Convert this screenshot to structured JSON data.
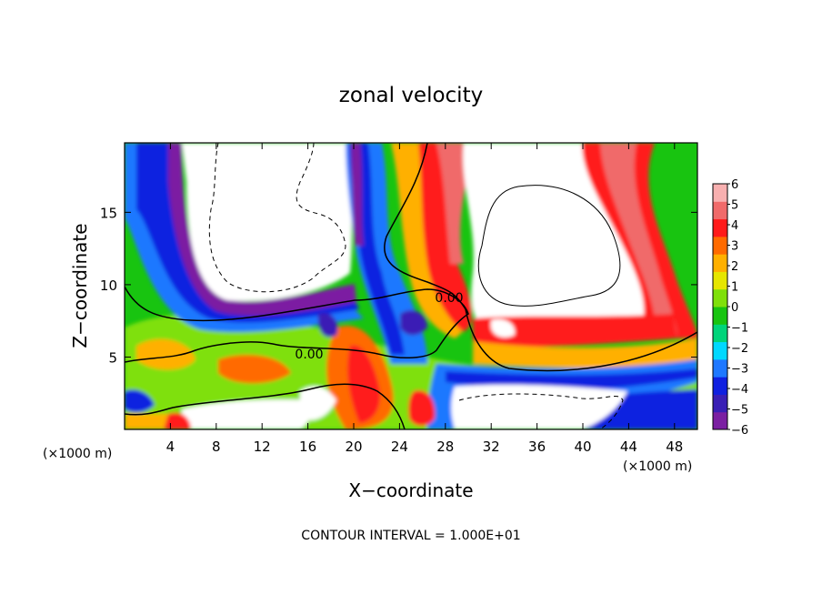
{
  "chart_data": {
    "type": "heatmap",
    "title": "zonal velocity",
    "xlabel": "X−coordinate",
    "ylabel": "Z−coordinate",
    "x_unit_left": "(×1000 m)",
    "x_unit_right": "(×1000 m)",
    "xlim": [
      0,
      50
    ],
    "ylim": [
      0,
      19.8
    ],
    "x_ticks": [
      4,
      8,
      12,
      16,
      20,
      24,
      28,
      32,
      36,
      40,
      44,
      48
    ],
    "y_ticks": [
      5,
      10,
      15
    ],
    "footer": "CONTOUR INTERVAL = 1.000E+01",
    "contour_labels": [
      {
        "text": "0.00",
        "x": 27.5,
        "y": 9.3
      },
      {
        "text": "0.00",
        "x": 16.1,
        "y": 5.3
      }
    ],
    "colorbar": {
      "min": -6,
      "max": 6,
      "tick_values": [
        6,
        5,
        4,
        3,
        2,
        1,
        0,
        -1,
        -2,
        -3,
        -4,
        -5,
        -6
      ],
      "tick_labels": [
        "6",
        "5",
        "4",
        "3",
        "2",
        "1",
        "0",
        "−1",
        "−2",
        "−3",
        "−4",
        "−5",
        "−6"
      ],
      "colors": [
        "#7b1fa2",
        "#3a1fb5",
        "#1020e0",
        "#1e78ff",
        "#00d8ff",
        "#00d47a",
        "#18c410",
        "#7fe00a",
        "#e6e600",
        "#ffb000",
        "#ff6a00",
        "#ff1a1a",
        "#f06a6a",
        "#f8b0b0"
      ]
    },
    "grid": "dense field",
    "legend": "colorbar right"
  }
}
